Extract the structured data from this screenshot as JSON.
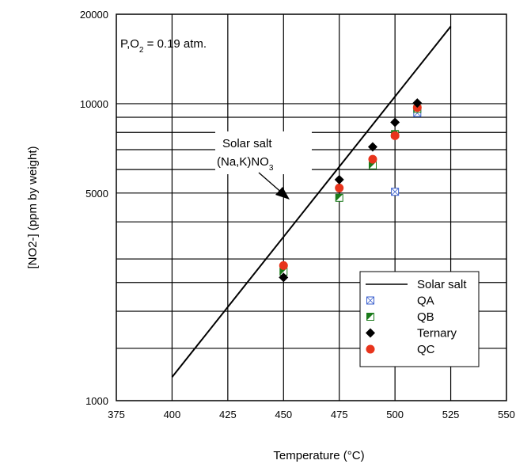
{
  "chart_data": {
    "type": "scatter",
    "title": "",
    "xlabel": "Temperature (°C)",
    "ylabel": "[NO2-]   (ppm by weight)",
    "xlim": [
      375,
      550
    ],
    "ylim": [
      1000,
      20000
    ],
    "y_scale": "log",
    "x_ticks": [
      375,
      400,
      425,
      450,
      475,
      500,
      525,
      550
    ],
    "y_tick_labels": [
      "1000",
      "5000",
      "10000",
      "20000"
    ],
    "y_tick_values": [
      1000,
      5000,
      10000,
      20000
    ],
    "y_gridlines": [
      1000,
      1500,
      2000,
      2500,
      3000,
      4000,
      5000,
      6000,
      7000,
      8000,
      9000,
      10000,
      20000
    ],
    "grid": true,
    "legend_position": "bottom-right",
    "annotations": {
      "pressure": {
        "main": "P,O",
        "sub": "2",
        "tail": " = 0.19 atm."
      },
      "arrow_label_line1": "Solar salt",
      "arrow_label_line2_main": "(Na,K)NO",
      "arrow_label_line2_sub": "3"
    },
    "series": [
      {
        "name": "Solar salt",
        "kind": "line",
        "color": "#000000",
        "x": [
          400,
          525
        ],
        "y": [
          1200,
          18200
        ]
      },
      {
        "name": "QA",
        "kind": "marker",
        "marker": "crossed-square",
        "color": "#3a5fcd",
        "x": [
          500,
          510
        ],
        "y": [
          5050,
          9300
        ]
      },
      {
        "name": "QB",
        "kind": "marker",
        "marker": "half-square",
        "color": "#1a7a1a",
        "x": [
          450,
          475,
          490,
          500,
          510
        ],
        "y": [
          2720,
          4820,
          6200,
          7900,
          9600
        ]
      },
      {
        "name": "Ternary",
        "kind": "marker",
        "marker": "diamond",
        "color": "#000000",
        "x": [
          450,
          475,
          490,
          500,
          510
        ],
        "y": [
          2600,
          5550,
          7150,
          8650,
          10050
        ]
      },
      {
        "name": "QC",
        "kind": "marker",
        "marker": "circle",
        "color": "#e8341c",
        "x": [
          450,
          475,
          490,
          500,
          510
        ],
        "y": [
          2850,
          5200,
          6500,
          7800,
          9700
        ]
      }
    ]
  }
}
